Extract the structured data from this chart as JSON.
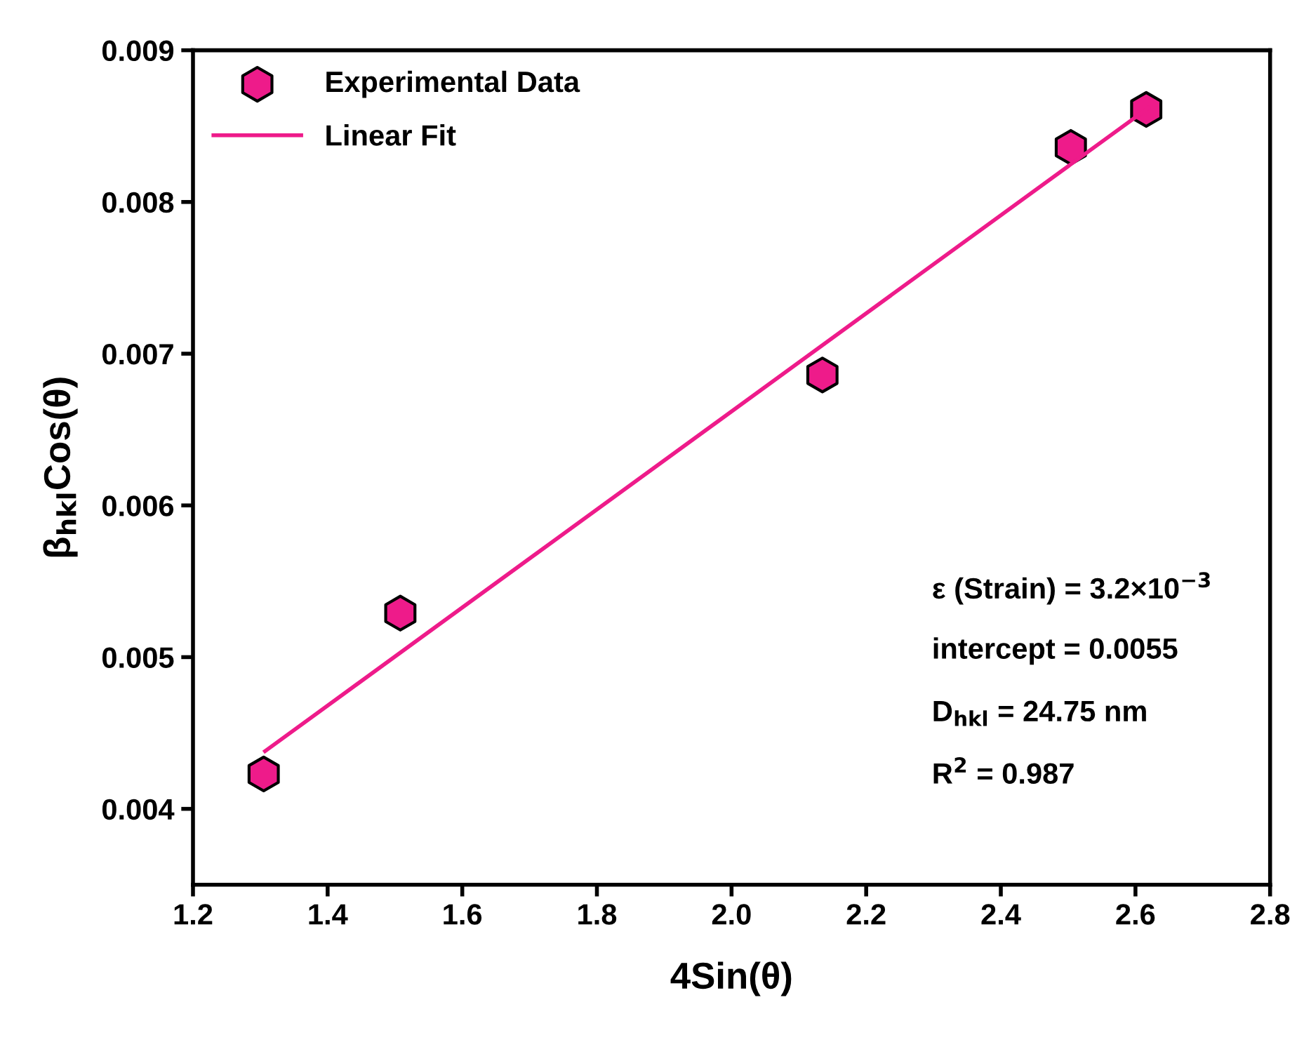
{
  "chart_data": {
    "type": "scatter",
    "xlabel": "4Sin(θ)",
    "ylabel": "β$_{hkl}$Cos(θ)",
    "series": [
      {
        "name": "Experimental Data",
        "color": "#ee1b8a",
        "x": [
          1.305,
          1.508,
          2.135,
          2.504,
          2.616
        ],
        "values": [
          0.00423,
          0.00529,
          0.00686,
          0.00836,
          0.00861
        ]
      },
      {
        "name": "Linear Fit",
        "type": "line",
        "color": "#ee1b8a",
        "line_style": "solid",
        "marker": "none",
        "x": [
          1.307,
          2.619
        ],
        "values": [
          0.00438,
          0.00862
        ]
      }
    ],
    "annotations": [
      "ε (Strain) = 3.2×10$^{−3}$",
      "intercept = 0.0055",
      "D$_{hkl}$ = 24.75 nm",
      "R$^{2}$ = 0.987"
    ],
    "xlim": [
      1.2,
      2.8
    ],
    "xticks": [
      {
        "value": 1.2,
        "label": "1.2"
      },
      {
        "value": 1.4,
        "label": "1.4"
      },
      {
        "value": 1.6,
        "label": "1.6"
      },
      {
        "value": 1.8,
        "label": "1.8"
      },
      {
        "value": 2.0,
        "label": "2.0"
      },
      {
        "value": 2.2,
        "label": "2.2"
      },
      {
        "value": 2.4,
        "label": "2.4"
      },
      {
        "value": 2.6,
        "label": "2.6"
      },
      {
        "value": 2.8,
        "label": "2.8"
      }
    ],
    "ylim": [
      0.0035,
      0.009
    ],
    "yticks": [
      {
        "value": 0.004,
        "label": "0.004"
      },
      {
        "value": 0.005,
        "label": "0.005"
      },
      {
        "value": 0.006,
        "label": "0.006"
      },
      {
        "value": 0.007,
        "label": "0.007"
      },
      {
        "value": 0.008,
        "label": "0.008"
      },
      {
        "value": 0.009,
        "label": "0.009"
      }
    ],
    "grid": false,
    "legend": "top left"
  }
}
